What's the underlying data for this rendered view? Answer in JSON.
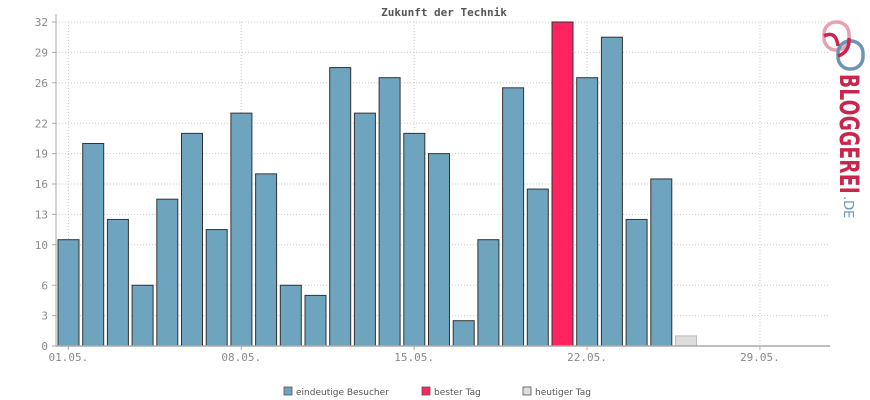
{
  "chart_data": {
    "type": "bar",
    "title": "Zukunft der Technik",
    "x_tick_labels": [
      "01.05.",
      "08.05.",
      "15.05.",
      "22.05.",
      "29.05."
    ],
    "x_tick_index": [
      0,
      7,
      14,
      21,
      28
    ],
    "day_slots": 31,
    "values": [
      10.5,
      20,
      12.5,
      6,
      14.5,
      21,
      11.5,
      23,
      17,
      6,
      5,
      27.5,
      23,
      26.5,
      21,
      19,
      2.5,
      10.5,
      25.5,
      15.5,
      32,
      26.5,
      30.5,
      12.5,
      16.5,
      1
    ],
    "bar_roles": [
      "visitors",
      "visitors",
      "visitors",
      "visitors",
      "visitors",
      "visitors",
      "visitors",
      "visitors",
      "visitors",
      "visitors",
      "visitors",
      "visitors",
      "visitors",
      "visitors",
      "visitors",
      "visitors",
      "visitors",
      "visitors",
      "visitors",
      "visitors",
      "best",
      "visitors",
      "visitors",
      "visitors",
      "visitors",
      "today"
    ],
    "y_ticks": [
      0,
      3,
      6,
      10,
      13,
      16,
      19,
      22,
      26,
      29,
      32
    ],
    "ylim": [
      0,
      32
    ],
    "grid": true,
    "legend_position": "bottom",
    "legend": [
      {
        "key": "visitors",
        "label": "eindeutige Besucher",
        "color": "#6ea4bd"
      },
      {
        "key": "best",
        "label": "bester Tag",
        "color": "#ff2360"
      },
      {
        "key": "today",
        "label": "heutiger Tag",
        "color": "#dddddd"
      }
    ]
  },
  "brand": {
    "name": "BLOGGEREI",
    "tld": ".DE",
    "colors": {
      "red": "#c9254d",
      "blue": "#6b95b4"
    }
  }
}
